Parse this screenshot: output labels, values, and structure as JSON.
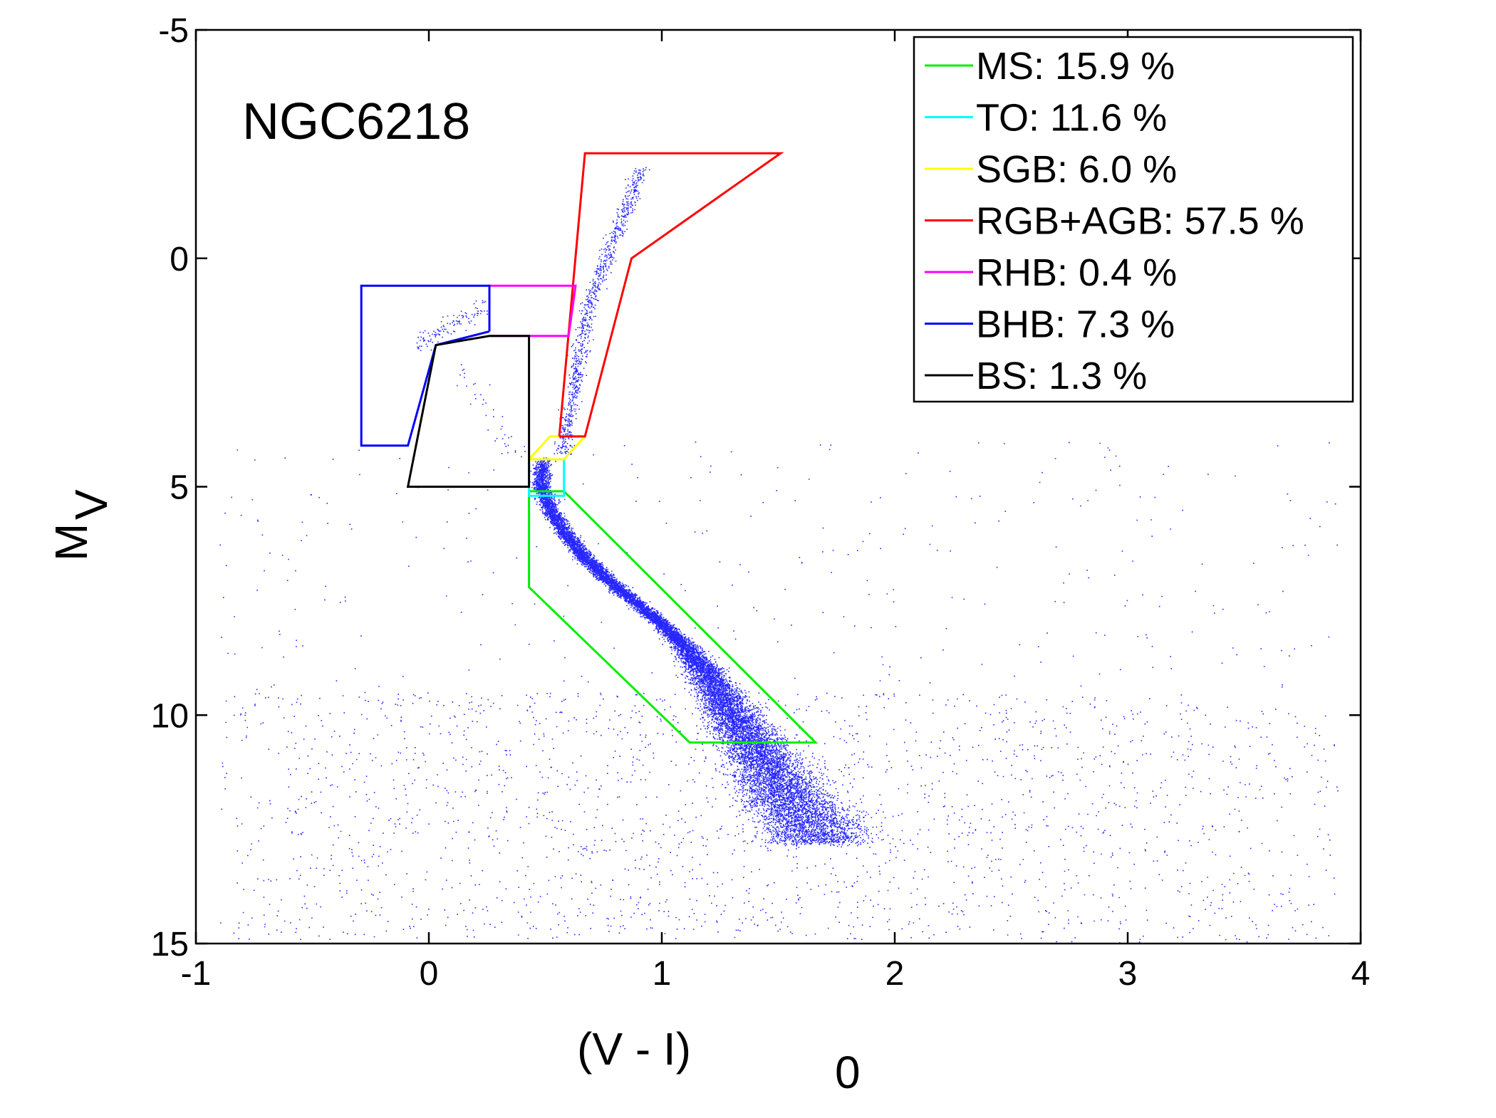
{
  "chart_data": {
    "type": "scatter",
    "title": "",
    "annotation": "NGC6218",
    "xlabel": "(V - I)",
    "xlabel_subscript": "0",
    "ylabel": "M",
    "ylabel_subscript": "V",
    "xlim": [
      -1,
      4
    ],
    "ylim": [
      15,
      -5
    ],
    "y_inverted": true,
    "grid": false,
    "x_ticks": [
      -1,
      0,
      1,
      2,
      3,
      4
    ],
    "y_ticks": [
      -5,
      0,
      5,
      10,
      15
    ],
    "x_tick_labels": [
      "-1",
      "0",
      "1",
      "2",
      "3",
      "4"
    ],
    "y_tick_labels": [
      "-5",
      "0",
      "5",
      "10",
      "15"
    ],
    "legend_position": "top-right",
    "point_color": "#0000ff",
    "scatter_description": "Dense cloud of ~1e4 stars tracing the main sequence from turnoff (V-I≈0.5, MV≈4.5) down to (V-I≈1.5, MV≈12), with red giant branch, horizontal branch and sparse field stars.",
    "regions": [
      {
        "name": "MS",
        "label": "MS: 15.9 %",
        "percent": 15.9,
        "color": "#00ee00",
        "polygon": [
          [
            0.43,
            5.1
          ],
          [
            0.58,
            5.1
          ],
          [
            1.66,
            10.6
          ],
          [
            1.12,
            10.6
          ],
          [
            0.43,
            7.2
          ],
          [
            0.43,
            5.1
          ]
        ]
      },
      {
        "name": "TO",
        "label": "TO: 11.6 %",
        "percent": 11.6,
        "color": "#00ffff",
        "polygon": [
          [
            0.43,
            4.4
          ],
          [
            0.58,
            4.4
          ],
          [
            0.58,
            5.2
          ],
          [
            0.43,
            5.2
          ],
          [
            0.43,
            4.4
          ]
        ]
      },
      {
        "name": "SGB",
        "label": "SGB: 6.0 %",
        "percent": 6.0,
        "color": "#ffff00",
        "polygon": [
          [
            0.43,
            4.4
          ],
          [
            0.52,
            3.9
          ],
          [
            0.67,
            3.9
          ],
          [
            0.58,
            4.4
          ],
          [
            0.43,
            4.4
          ]
        ]
      },
      {
        "name": "RGB+AGB",
        "label": "RGB+AGB: 57.5 %",
        "percent": 57.5,
        "color": "#ff0000",
        "polygon": [
          [
            0.56,
            3.9
          ],
          [
            0.67,
            -2.3
          ],
          [
            1.51,
            -2.3
          ],
          [
            0.87,
            0.0
          ],
          [
            0.67,
            3.9
          ],
          [
            0.56,
            3.9
          ]
        ]
      },
      {
        "name": "RHB",
        "label": "RHB: 0.4 %",
        "percent": 0.4,
        "color": "#ff00ff",
        "polygon": [
          [
            0.26,
            0.6
          ],
          [
            0.63,
            0.6
          ],
          [
            0.6,
            1.7
          ],
          [
            0.26,
            1.7
          ]
        ]
      },
      {
        "name": "BHB",
        "label": "BHB: 7.3 %",
        "percent": 7.3,
        "color": "#0000ff",
        "polygon": [
          [
            0.26,
            1.6
          ],
          [
            0.26,
            0.6
          ],
          [
            -0.29,
            0.6
          ],
          [
            -0.29,
            4.1
          ],
          [
            -0.09,
            4.1
          ],
          [
            0.03,
            1.9
          ],
          [
            0.26,
            1.6
          ]
        ]
      },
      {
        "name": "BS",
        "label": "BS: 1.3 %",
        "percent": 1.3,
        "color": "#000000",
        "polygon": [
          [
            0.03,
            1.9
          ],
          [
            0.26,
            1.7
          ],
          [
            0.43,
            1.7
          ],
          [
            0.43,
            5.0
          ],
          [
            -0.09,
            5.0
          ],
          [
            0.03,
            1.9
          ]
        ]
      }
    ]
  }
}
